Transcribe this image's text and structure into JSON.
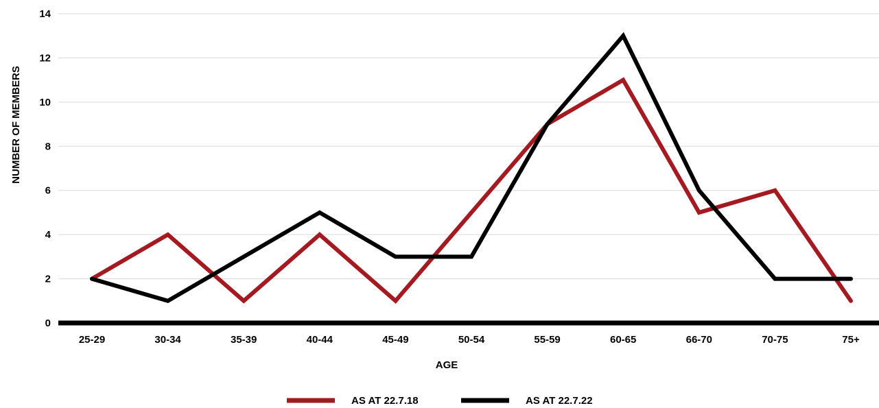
{
  "chart_data": {
    "type": "line",
    "categories": [
      "25-29",
      "30-34",
      "35-39",
      "40-44",
      "45-49",
      "50-54",
      "55-59",
      "60-65",
      "66-70",
      "70-75",
      "75+"
    ],
    "series": [
      {
        "name": "AS AT 22.7.18",
        "color": "#a31b21",
        "values": [
          2,
          4,
          1,
          4,
          1,
          5,
          9,
          11,
          5,
          6,
          1
        ]
      },
      {
        "name": "AS AT 22.7.22",
        "color": "#000000",
        "values": [
          2,
          1,
          3,
          5,
          3,
          3,
          9,
          13,
          6,
          2,
          2
        ]
      }
    ],
    "title": "",
    "xlabel": "AGE",
    "ylabel": "NUMBER OF MEMBERS",
    "ylim": [
      0,
      14
    ],
    "yticks": [
      0,
      2,
      4,
      6,
      8,
      10,
      12,
      14
    ],
    "grid": true,
    "legend_position": "bottom"
  }
}
